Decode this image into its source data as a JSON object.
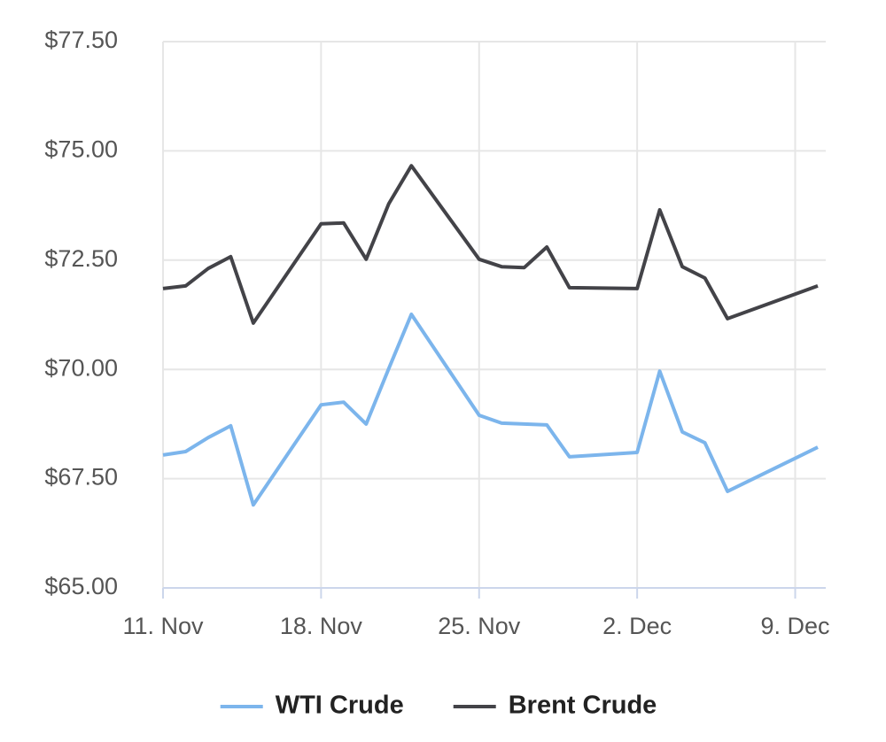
{
  "chart_data": {
    "type": "line",
    "x": [
      "11. Nov",
      "12. Nov",
      "13. Nov",
      "14. Nov",
      "15. Nov",
      "18. Nov",
      "19. Nov",
      "20. Nov",
      "21. Nov",
      "22. Nov",
      "25. Nov",
      "26. Nov",
      "27. Nov",
      "28. Nov",
      "29. Nov",
      "2. Dec",
      "3. Dec",
      "4. Dec",
      "5. Dec",
      "6. Dec",
      "10. Dec"
    ],
    "series": [
      {
        "name": "WTI Crude",
        "color": "#7cb5ec",
        "values": [
          68.04,
          68.12,
          68.44,
          68.71,
          66.9,
          69.19,
          69.25,
          68.75,
          70.02,
          71.26,
          68.95,
          68.77,
          68.75,
          68.73,
          68.0,
          68.1,
          69.96,
          68.57,
          68.32,
          67.21,
          68.22
        ]
      },
      {
        "name": "Brent Crude",
        "color": "#434348",
        "values": [
          71.85,
          71.91,
          72.31,
          72.58,
          71.06,
          73.33,
          73.35,
          72.52,
          73.79,
          74.66,
          72.52,
          72.35,
          72.33,
          72.8,
          71.87,
          71.85,
          73.65,
          72.35,
          72.09,
          71.16,
          71.91
        ]
      }
    ],
    "xlim": [
      "11. Nov",
      "10. Dec"
    ],
    "xticks": [
      "11. Nov",
      "18. Nov",
      "25. Nov",
      "2. Dec",
      "9. Dec"
    ],
    "ylim": [
      65,
      77.5
    ],
    "yticks": [
      {
        "value": 65,
        "label": "$65.00"
      },
      {
        "value": 67.5,
        "label": "$67.50"
      },
      {
        "value": 70,
        "label": "$70.00"
      },
      {
        "value": 72.5,
        "label": "$72.50"
      },
      {
        "value": 75,
        "label": "$75.00"
      },
      {
        "value": 77.5,
        "label": "$77.50"
      }
    ],
    "grid": true,
    "legend": "bottom"
  }
}
